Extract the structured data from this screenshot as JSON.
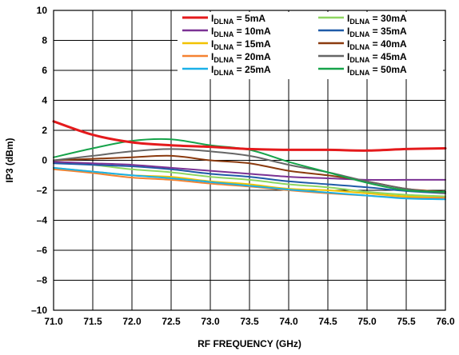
{
  "chart_data": {
    "type": "line",
    "title": "",
    "xlabel": "RF FREQUENCY (GHz)",
    "ylabel": "IP3 (dBm)",
    "xlim": [
      71.0,
      76.0
    ],
    "ylim": [
      -10,
      10
    ],
    "x_ticks": [
      "71.0",
      "71.5",
      "72.0",
      "72.5",
      "73.0",
      "73.5",
      "74.0",
      "74.5",
      "75.0",
      "75.5",
      "76.0"
    ],
    "y_ticks": [
      "10",
      "8",
      "6",
      "4",
      "2",
      "0",
      "–2",
      "–4",
      "–6",
      "–8",
      "–10"
    ],
    "grid": true,
    "legend_position": "top-right",
    "x": [
      71.0,
      71.5,
      72.0,
      72.5,
      73.0,
      73.5,
      74.0,
      74.5,
      75.0,
      75.5,
      76.0
    ],
    "series": [
      {
        "label_main": "I",
        "label_sub": "DLNA",
        "label_rest": " = 5mA",
        "color": "#e41a1c",
        "values": [
          2.6,
          1.7,
          1.2,
          1.0,
          0.9,
          0.75,
          0.7,
          0.7,
          0.65,
          0.75,
          0.8
        ]
      },
      {
        "label_main": "I",
        "label_sub": "DLNA",
        "label_rest": " = 10mA",
        "color": "#7b3294",
        "values": [
          -0.1,
          -0.2,
          -0.3,
          -0.5,
          -0.7,
          -0.9,
          -1.1,
          -1.2,
          -1.3,
          -1.3,
          -1.3
        ]
      },
      {
        "label_main": "I",
        "label_sub": "DLNA",
        "label_rest": " = 15mA",
        "color": "#f2c200",
        "values": [
          -0.5,
          -0.75,
          -1.0,
          -1.1,
          -1.4,
          -1.6,
          -1.9,
          -2.0,
          -2.2,
          -2.4,
          -2.4
        ]
      },
      {
        "label_main": "I",
        "label_sub": "DLNA",
        "label_rest": " = 20mA",
        "color": "#f58231",
        "values": [
          -0.6,
          -0.85,
          -1.15,
          -1.3,
          -1.55,
          -1.75,
          -2.0,
          -2.2,
          -2.35,
          -2.5,
          -2.5
        ]
      },
      {
        "label_main": "I",
        "label_sub": "DLNA",
        "label_rest": " = 25mA",
        "color": "#1ab0e8",
        "values": [
          -0.5,
          -0.75,
          -1.0,
          -1.2,
          -1.45,
          -1.7,
          -1.95,
          -2.15,
          -2.35,
          -2.55,
          -2.6
        ]
      },
      {
        "label_main": "I",
        "label_sub": "DLNA",
        "label_rest": " = 30mA",
        "color": "#8ed660",
        "values": [
          -0.1,
          -0.3,
          -0.6,
          -0.8,
          -1.1,
          -1.3,
          -1.6,
          -1.8,
          -2.1,
          -2.3,
          -2.4
        ]
      },
      {
        "label_main": "I",
        "label_sub": "DLNA",
        "label_rest": " = 35mA",
        "color": "#1f5ba8",
        "values": [
          -0.2,
          -0.3,
          -0.4,
          -0.6,
          -0.9,
          -1.1,
          -1.4,
          -1.6,
          -1.8,
          -2.05,
          -2.2
        ]
      },
      {
        "label_main": "I",
        "label_sub": "DLNA",
        "label_rest": " = 40mA",
        "color": "#8b3a0e",
        "values": [
          0.0,
          0.1,
          0.2,
          0.3,
          0.0,
          -0.2,
          -0.7,
          -1.0,
          -1.4,
          -1.9,
          -2.1
        ]
      },
      {
        "label_main": "I",
        "label_sub": "DLNA",
        "label_rest": " = 45mA",
        "color": "#666666",
        "values": [
          0.0,
          0.3,
          0.6,
          0.75,
          0.6,
          0.3,
          -0.3,
          -0.8,
          -1.4,
          -1.9,
          -2.2
        ]
      },
      {
        "label_main": "I",
        "label_sub": "DLNA",
        "label_rest": " = 50mA",
        "color": "#16a34a",
        "values": [
          0.2,
          0.8,
          1.3,
          1.4,
          1.0,
          0.7,
          -0.1,
          -0.8,
          -1.5,
          -2.0,
          -2.1
        ]
      }
    ]
  }
}
